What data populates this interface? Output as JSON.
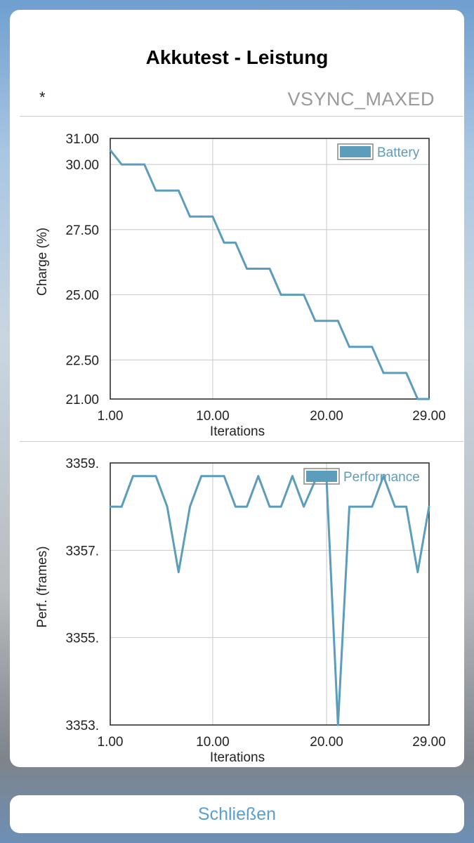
{
  "header": {
    "title": "Akkutest - Leistung",
    "marker": "*",
    "mode": "VSYNC_MAXED"
  },
  "colors": {
    "series": "#5b9dbb",
    "grid": "#c8c8c8",
    "frame": "#222222",
    "close_text": "#5a9fd4"
  },
  "close_label": "Schließen",
  "chart_data": [
    {
      "type": "line",
      "xlabel": "Iterations",
      "ylabel": "Charge (%)",
      "x_ticks": [
        "1.00",
        "10.00",
        "20.00",
        "29.00"
      ],
      "y_ticks": [
        "31.00",
        "30.00",
        "27.50",
        "25.00",
        "22.50",
        "21.00"
      ],
      "xlim": [
        1,
        29
      ],
      "ylim": [
        21,
        31
      ],
      "grid": true,
      "legend": "top-right",
      "series": [
        {
          "name": "Battery",
          "x": [
            1,
            2,
            3,
            4,
            5,
            6,
            7,
            8,
            9,
            10,
            11,
            12,
            13,
            14,
            15,
            16,
            17,
            18,
            19,
            20,
            21,
            22,
            23,
            24,
            25,
            26,
            27,
            28,
            29
          ],
          "values": [
            30.55,
            30,
            30,
            30,
            29,
            29,
            29,
            28,
            28,
            28,
            27,
            27,
            26,
            26,
            26,
            25,
            25,
            25,
            24,
            24,
            24,
            23,
            23,
            23,
            22,
            22,
            22,
            21,
            21
          ]
        }
      ]
    },
    {
      "type": "line",
      "xlabel": "Iterations",
      "ylabel": "Perf. (frames)",
      "x_ticks": [
        "1.00",
        "10.00",
        "20.00",
        "29.00"
      ],
      "y_ticks": [
        "3359.",
        "3357.",
        "3355.",
        "3353."
      ],
      "xlim": [
        1,
        29
      ],
      "ylim": [
        3353,
        3359
      ],
      "grid": true,
      "legend": "top-right",
      "series": [
        {
          "name": "Performance",
          "x": [
            1,
            2,
            3,
            4,
            5,
            6,
            7,
            8,
            9,
            10,
            11,
            12,
            13,
            14,
            15,
            16,
            17,
            18,
            19,
            20,
            21,
            22,
            23,
            24,
            25,
            26,
            27,
            28,
            29
          ],
          "values": [
            3358,
            3358,
            3358.7,
            3358.7,
            3358.7,
            3358,
            3356.5,
            3358,
            3358.7,
            3358.7,
            3358.7,
            3358,
            3358,
            3358.7,
            3358,
            3358,
            3358.7,
            3358,
            3358.6,
            3358.6,
            3353,
            3358,
            3358,
            3358,
            3358.7,
            3358,
            3358,
            3356.5,
            3358
          ]
        }
      ]
    }
  ]
}
